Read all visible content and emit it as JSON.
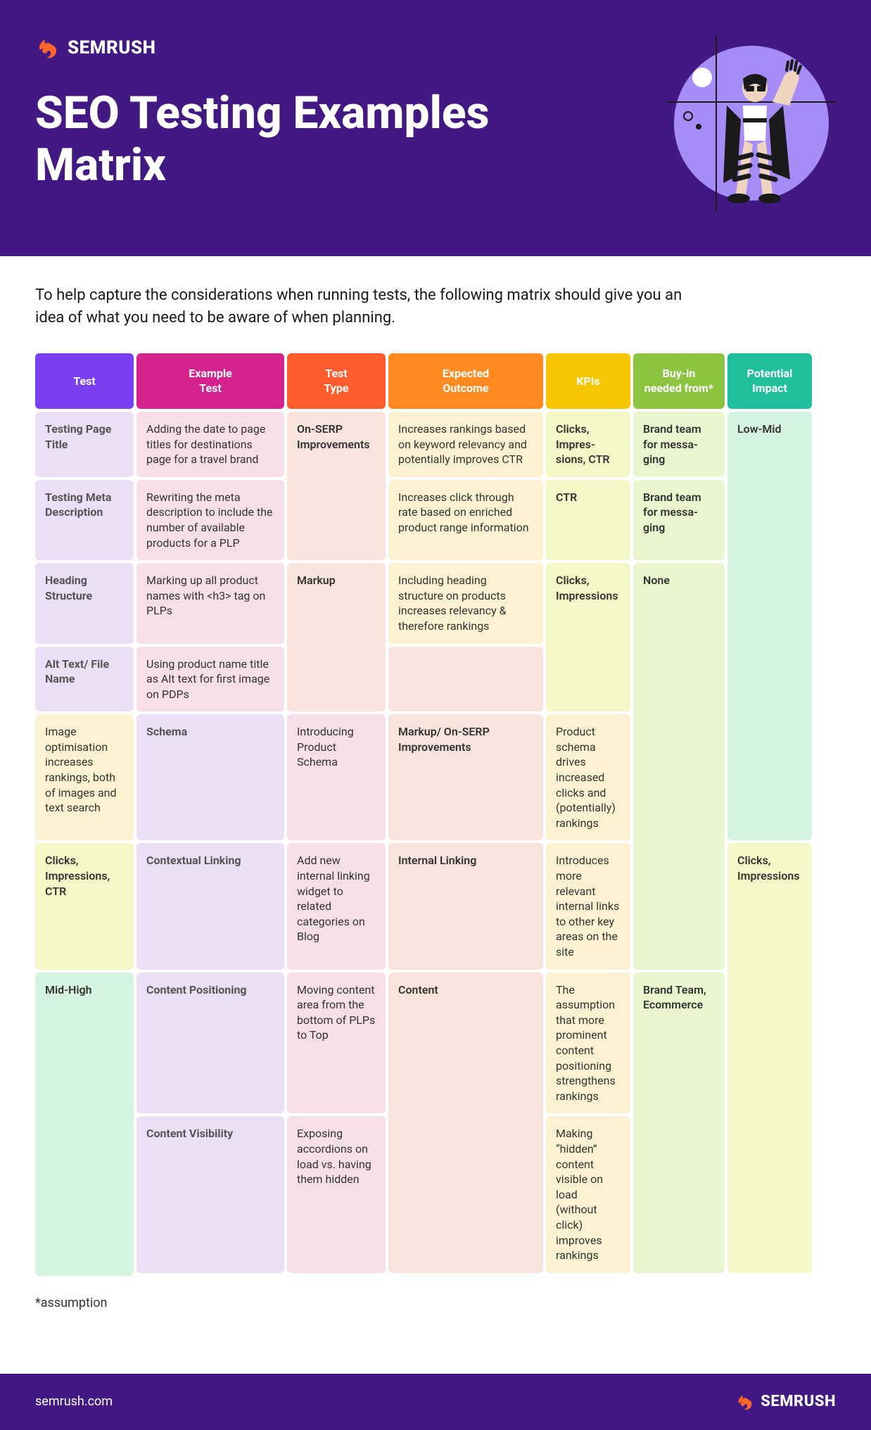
{
  "brand": "SEMRUSH",
  "title": "SEO Testing Examples Matrix",
  "intro": "To help capture the considerations when running tests, the following matrix should give you an idea of what you need to be aware of when planning.",
  "footnote": "*assumption",
  "footer_url": "semrush.com",
  "header_colors": {
    "background": "#421983",
    "illustration_circle": "#a58cf6"
  },
  "columns": [
    {
      "label": "Test",
      "header_bg": "#7b3ff2",
      "cell_bg": "#eadff5"
    },
    {
      "label": "Example\nTest",
      "header_bg": "#d4228f",
      "cell_bg": "#f6dfe9"
    },
    {
      "label": "Test\nType",
      "header_bg": "#ff5c2e",
      "cell_bg": "#f8e4dc"
    },
    {
      "label": "Expected\nOutcome",
      "header_bg": "#ff8a1f",
      "cell_bg": "#fcf1d0"
    },
    {
      "label": "KPIs",
      "header_bg": "#f7c600",
      "cell_bg": "#f4f7c6"
    },
    {
      "label": "Buy-in needed from*",
      "header_bg": "#8bc53f",
      "cell_bg": "#e9f5cc"
    },
    {
      "label": "Potential Impact",
      "header_bg": "#1fbf9c",
      "cell_bg": "#d5f4e0"
    }
  ],
  "rows": [
    {
      "test": "Testing Page Title",
      "example": "Adding the date to page titles for destinations page for a travel brand",
      "type": "On-SERP Improvements",
      "outcome": "Increases rankings based on keyword relevancy and potentially improves CTR",
      "kpis": "Clicks, Impres­sions, CTR",
      "buyin": "Brand team for messa­ging",
      "impact": "Low-Mid"
    },
    {
      "test": "Testing Meta Description",
      "example": "Rewriting the meta description to include the number of available products for a PLP",
      "type": "",
      "outcome": "Increases click through rate based on enriched product range information",
      "kpis": "CTR",
      "buyin": "Brand team for messa­ging",
      "impact": ""
    },
    {
      "test": "Heading Structure",
      "example": "Marking up all product names with <h3> tag on PLPs",
      "type": "Markup",
      "outcome": "Including heading structure on products increases relevancy & therefore rankings",
      "kpis": "Clicks, Impressions",
      "buyin": "None",
      "impact": ""
    },
    {
      "test": "Alt Text/ File Name",
      "example": "Using product name title as Alt text for first image on PDPs",
      "type": "",
      "outcome": "Image optimisation increases rankings, both of images and text search",
      "kpis": "",
      "buyin": "",
      "impact": ""
    },
    {
      "test": "Schema",
      "example": "Introducing Product Schema",
      "type": "Markup/ On-SERP Improvements",
      "outcome": "Product schema drives increased clicks and (potentially) rankings",
      "kpis": "Clicks, Impressions, CTR",
      "buyin": "",
      "impact": ""
    },
    {
      "test": "Contextual Linking",
      "example": "Add new internal linking widget to related categories on Blog",
      "type": "Internal Linking",
      "outcome": "Introduces more relevant internal links to other key areas on the site",
      "kpis": "Clicks, Impressions",
      "buyin": "",
      "impact": "Mid-High"
    },
    {
      "test": "Content Positioning",
      "example": "Moving content area from the bottom of PLPs to Top",
      "type": "Content",
      "outcome": "The assumption that more prominent content positioning strengthens rankings",
      "kpis": "",
      "buyin": "Brand Team, Ecommerce",
      "impact": ""
    },
    {
      "test": "Content Visibility",
      "example": "Exposing accordions on load vs. having them hidden",
      "type": "",
      "outcome": "Making “hidden” content visible on load (without click) improves rankings",
      "kpis": "",
      "buyin": "",
      "impact": ""
    }
  ],
  "merges": {
    "type": [
      2,
      0,
      2,
      1,
      1,
      1,
      2,
      0
    ],
    "kpis": [
      1,
      1,
      2,
      0,
      1,
      3,
      0,
      0
    ],
    "buyin": [
      1,
      1,
      4,
      0,
      0,
      0,
      2,
      0
    ],
    "impact": [
      5,
      0,
      0,
      0,
      0,
      3,
      0,
      0
    ]
  }
}
